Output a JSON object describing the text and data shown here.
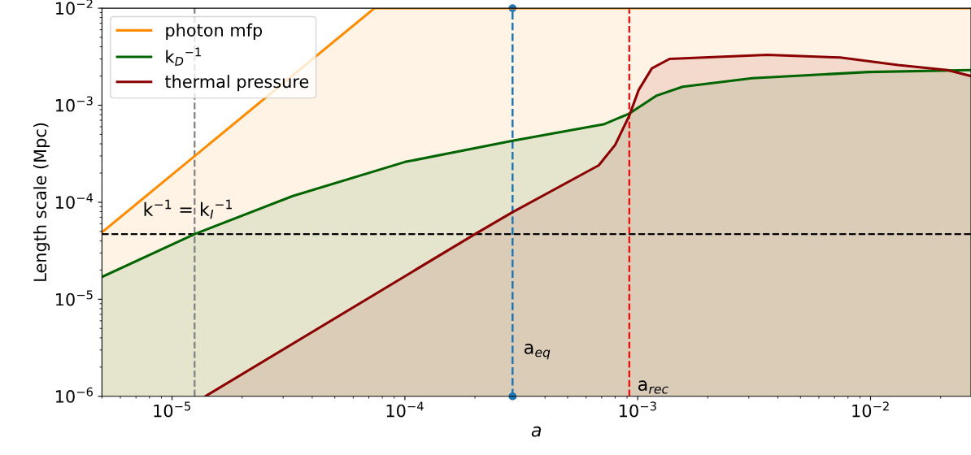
{
  "chart_data": {
    "type": "area",
    "xlabel": "a",
    "ylabel": "Length scale (Mpc)",
    "log": "xy",
    "xlim": [
      5e-06,
      0.027
    ],
    "ylim": [
      1e-06,
      0.01
    ],
    "xticks": [
      {
        "value": 1e-05,
        "label": "10$^{−5}$"
      },
      {
        "value": 0.0001,
        "label": "10$^{−4}$"
      },
      {
        "value": 0.001,
        "label": "10$^{−3}$"
      },
      {
        "value": 0.01,
        "label": "10$^{−2}$"
      }
    ],
    "yticks": [
      {
        "value": 1e-06,
        "label": "10$^{−6}$"
      },
      {
        "value": 1e-05,
        "label": "10$^{−5}$"
      },
      {
        "value": 0.0001,
        "label": "10$^{−4}$"
      },
      {
        "value": 0.001,
        "label": "10$^{−3}$"
      },
      {
        "value": 0.01,
        "label": "10$^{−2}$"
      }
    ],
    "grid": false,
    "legend": "top left",
    "series": [
      {
        "name": "photon mfp",
        "color": "#ff8c00",
        "x": [
          5e-06,
          7.4e-05,
          0.027
        ],
        "values": [
          4.9e-05,
          0.01,
          0.01
        ]
      },
      {
        "name": "k$_{D}$$^{−1}$",
        "color": "#006400",
        "x": [
          5e-06,
          1.25e-05,
          3.3e-05,
          0.0001,
          0.00029,
          0.00072,
          0.00092,
          0.0012,
          0.00156,
          0.0031,
          0.0098,
          0.027
        ],
        "values": [
          1.7e-05,
          4.7e-05,
          0.000116,
          0.00026,
          0.00043,
          0.00064,
          0.00082,
          0.00125,
          0.00155,
          0.0019,
          0.0022,
          0.0023
        ]
      },
      {
        "name": "thermal pressure",
        "color": "#8b0000",
        "x": [
          1.39e-05,
          0.0002,
          0.00029,
          0.00068,
          0.0008,
          0.00092,
          0.00101,
          0.00115,
          0.00137,
          0.0036,
          0.0074,
          0.0131,
          0.0214,
          0.027
        ],
        "values": [
          1e-06,
          4.7e-05,
          7.9e-05,
          0.00024,
          0.00039,
          0.00078,
          0.00144,
          0.0024,
          0.003,
          0.0033,
          0.0031,
          0.0026,
          0.0023,
          0.002
        ]
      },
      {
        "type": "line",
        "color": "#1f77b4",
        "marker": "circle",
        "line_style": "dashed",
        "x": [
          0.00029,
          0.00029
        ],
        "values": [
          1e-06,
          0.01
        ]
      }
    ],
    "ref_lines": [
      {
        "axis": "y",
        "value": 4.7e-05,
        "color": "#000000",
        "line_style": "dashed"
      },
      {
        "axis": "x",
        "value": 1.25e-05,
        "color": "#808080",
        "line_style": "dashed"
      },
      {
        "axis": "x",
        "value": 0.00092,
        "color": "#ff0000",
        "line_style": "dashed"
      }
    ],
    "annotations": [
      "k$^{−1}$ = k$_{I}$$^{−1}$",
      "a$_{eq}$",
      "a$_{rec}$"
    ]
  }
}
